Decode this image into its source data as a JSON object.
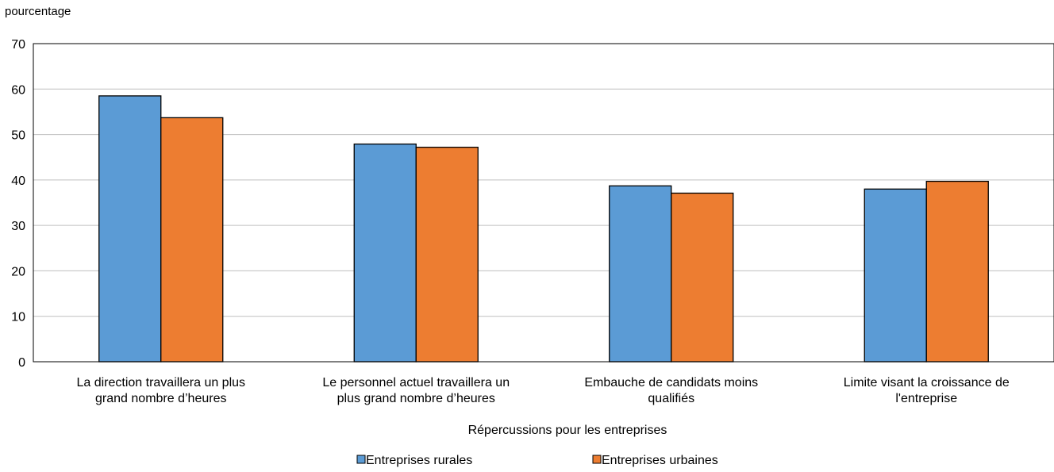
{
  "chart_data": {
    "type": "bar",
    "title": "",
    "ylabel": "pourcentage",
    "xlabel": "Répercussions pour les entreprises",
    "ylim": [
      0,
      70
    ],
    "yticks": [
      0,
      10,
      20,
      30,
      40,
      50,
      60,
      70
    ],
    "grid": true,
    "legend_position": "bottom",
    "categories": [
      [
        "La direction travaillera un plus",
        "grand nombre d’heures"
      ],
      [
        "Le personnel actuel travaillera un",
        "plus grand nombre d’heures"
      ],
      [
        "Embauche de candidats moins",
        "qualifiés"
      ],
      [
        "Limite visant la croissance de",
        "l'entreprise"
      ]
    ],
    "series": [
      {
        "name": "Entreprises rurales",
        "color": "#5b9bd5",
        "values": [
          58.5,
          47.9,
          38.7,
          38.0
        ]
      },
      {
        "name": "Entreprises urbaines",
        "color": "#ed7d31",
        "values": [
          53.7,
          47.2,
          37.1,
          39.7
        ]
      }
    ]
  }
}
